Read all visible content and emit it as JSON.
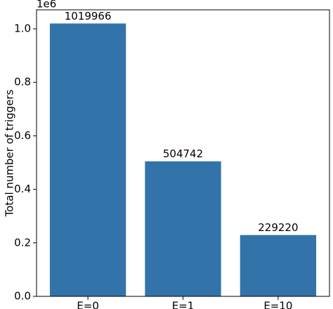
{
  "chart_data": {
    "type": "bar",
    "y_label": "Total number of triggers",
    "y_offset_label": "1e6",
    "categories": [
      "E=0",
      "E=1",
      "E=10"
    ],
    "values": [
      1019966,
      504742,
      229220
    ],
    "color": "#3274a9",
    "ylim": [
      0,
      1070964
    ],
    "yticks": [
      {
        "value": 0,
        "label": "0.0"
      },
      {
        "value": 200000,
        "label": "0.2"
      },
      {
        "value": 400000,
        "label": "0.4"
      },
      {
        "value": 600000,
        "label": "0.6"
      },
      {
        "value": 800000,
        "label": "0.8"
      },
      {
        "value": 1000000,
        "label": "1.0"
      }
    ],
    "grid": false
  }
}
